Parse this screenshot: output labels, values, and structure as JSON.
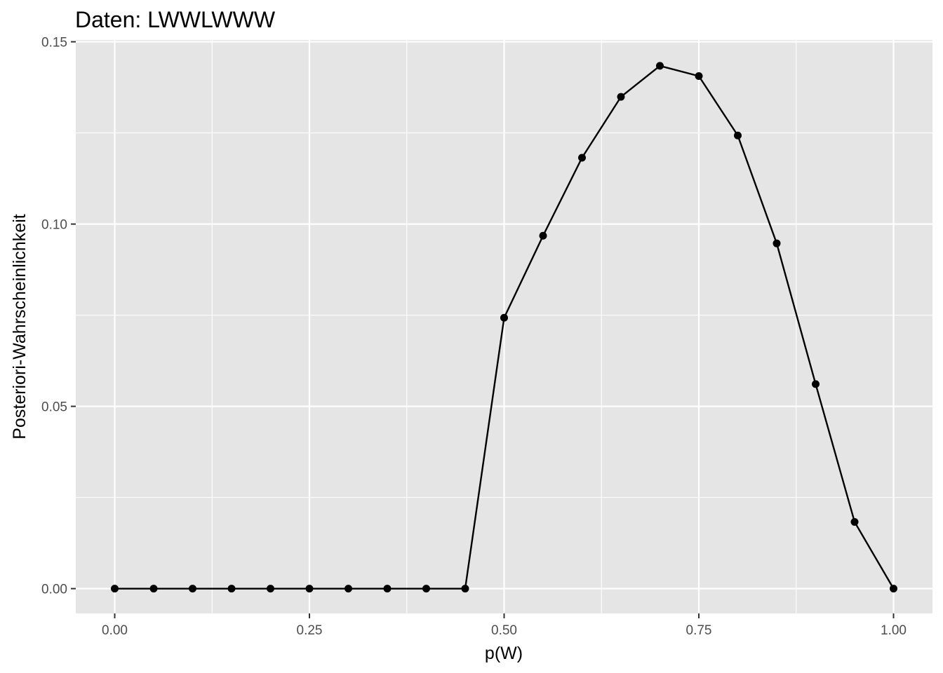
{
  "chart_data": {
    "type": "line",
    "title": "Daten: LWWLWWW",
    "xlabel": "p(W)",
    "ylabel": "Posteriori-Wahrscheinlichkeit",
    "xlim": [
      -0.05,
      1.05
    ],
    "ylim": [
      -0.0068,
      0.1505
    ],
    "x_ticks": [
      0.0,
      0.25,
      0.5,
      0.75,
      1.0
    ],
    "x_tick_labels": [
      "0.00",
      "0.25",
      "0.50",
      "0.75",
      "1.00"
    ],
    "y_ticks": [
      0.0,
      0.05,
      0.1,
      0.15
    ],
    "y_tick_labels": [
      "0.00",
      "0.05",
      "0.10",
      "0.15"
    ],
    "grid": true,
    "series": [
      {
        "x": [
          0.0,
          0.05,
          0.1,
          0.15,
          0.2,
          0.25,
          0.3,
          0.35,
          0.4,
          0.45,
          0.5,
          0.55,
          0.6,
          0.65,
          0.7,
          0.75,
          0.8,
          0.85,
          0.9,
          0.95,
          1.0
        ],
        "values": [
          0.0,
          0.0,
          0.0,
          0.0,
          0.0,
          0.0,
          0.0,
          0.0,
          0.0,
          0.0,
          0.0743,
          0.0968,
          0.1182,
          0.1349,
          0.1434,
          0.1406,
          0.1243,
          0.0947,
          0.0561,
          0.0183,
          0.0
        ]
      }
    ],
    "colors": {
      "panel": "#e5e5e5",
      "grid": "#ffffff",
      "line": "#000000",
      "tick_text": "#4d4d4d"
    }
  }
}
